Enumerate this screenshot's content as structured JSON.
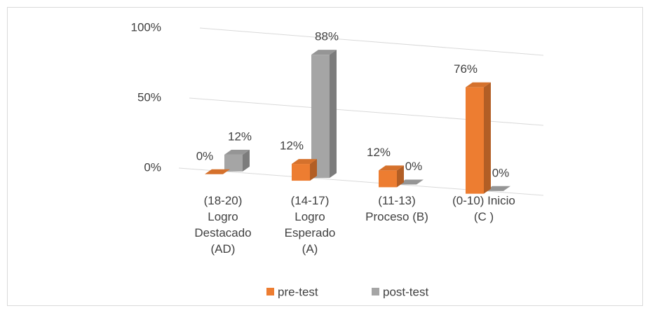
{
  "chart_data": {
    "type": "bar3d",
    "categories": [
      "(18-20) Logro Destacado (AD)",
      "(14-17) Logro Esperado (A)",
      "(11-13) Proceso (B)",
      "(0-10) Inicio (C )"
    ],
    "series": [
      {
        "name": "pre-test",
        "color": "#ed7d31",
        "values": [
          0,
          12,
          12,
          76
        ],
        "value_labels": [
          "0%",
          "12%",
          "12%",
          "76%"
        ]
      },
      {
        "name": "post-test",
        "color": "#a5a5a5",
        "values": [
          12,
          88,
          0,
          0
        ],
        "value_labels": [
          "12%",
          "88%",
          "0%",
          "0%"
        ]
      }
    ],
    "ylim": [
      0,
      100
    ],
    "yticks": [
      {
        "value": 0,
        "label": "0%"
      },
      {
        "value": 50,
        "label": "50%"
      },
      {
        "value": 100,
        "label": "100%"
      }
    ],
    "grid": true,
    "legend": "bottom"
  }
}
